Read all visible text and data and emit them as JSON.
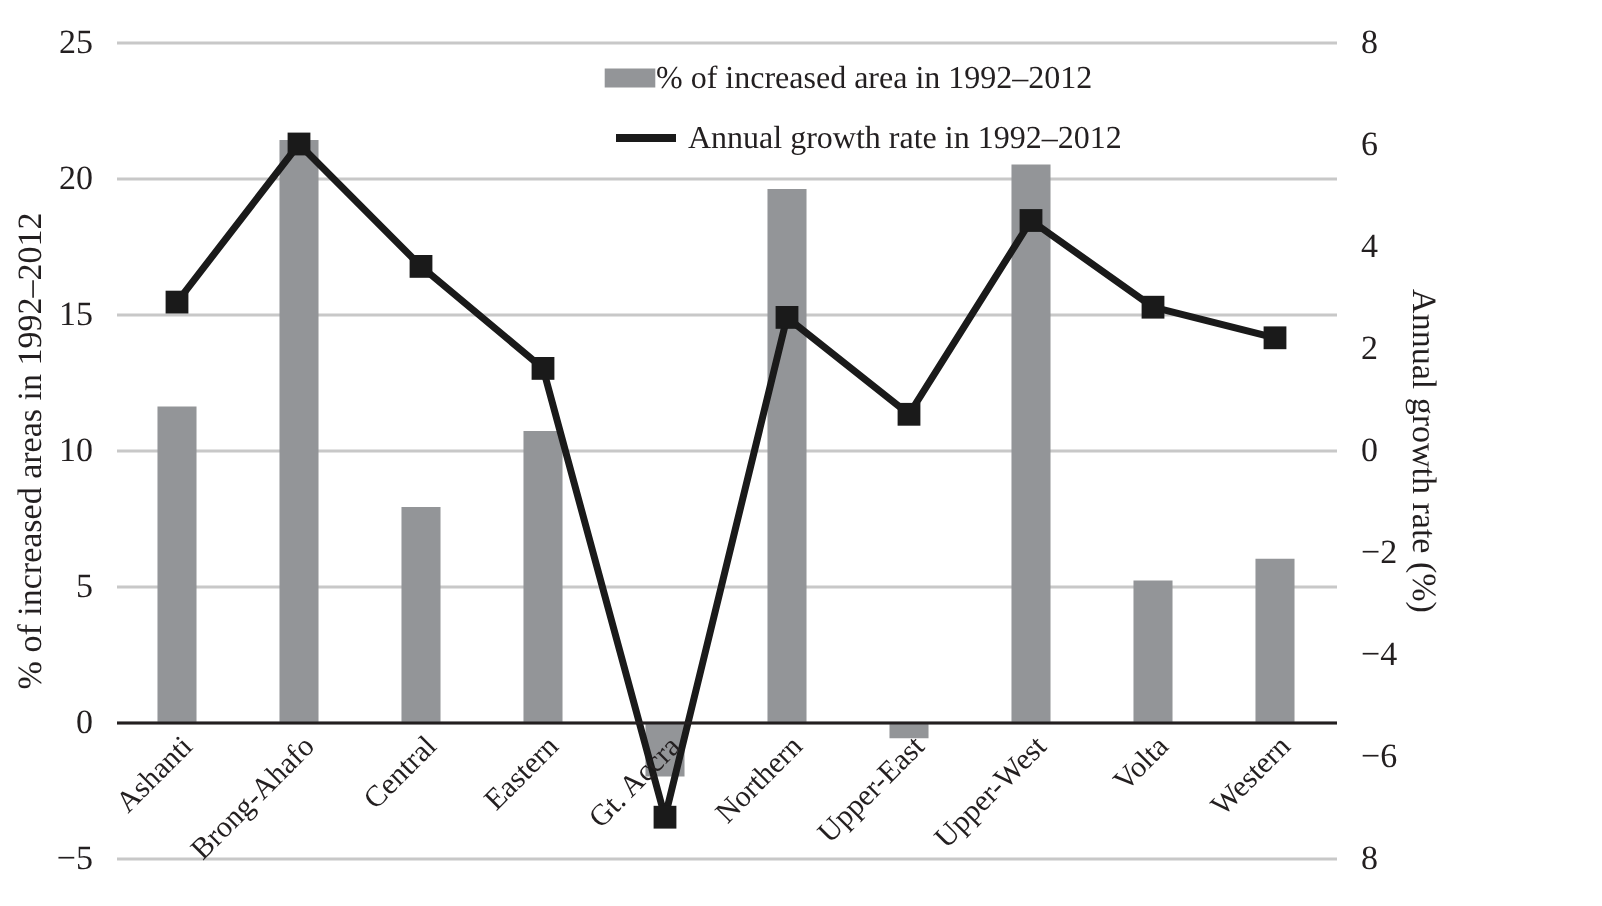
{
  "chart_data": {
    "type": "bar",
    "categories": [
      "Ashanti",
      "Brong-Ahafo",
      "Central",
      "Eastern",
      "Gt. Accra",
      "Northern",
      "Upper-East",
      "Upper-West",
      "Volta",
      "Western"
    ],
    "series": [
      {
        "name": "% of increased area in 1992–2012",
        "color": "#939598",
        "values": [
          11.6,
          21.4,
          7.9,
          10.7,
          -2.0,
          19.6,
          -0.6,
          20.5,
          5.2,
          6.0
        ]
      },
      {
        "name": "Annual growth rate in 1992–2012",
        "type": "line",
        "axis": "y2",
        "color": "#1a1a1a",
        "marker": "square",
        "line_style": "solid",
        "values": [
          2.9,
          6.0,
          3.6,
          1.6,
          -7.2,
          2.6,
          0.7,
          4.5,
          2.8,
          2.2
        ]
      }
    ],
    "ylabel": "% of increased areas in 1992–2012",
    "y2label": "Annual growth rate (%)",
    "ylim": [
      -5,
      25
    ],
    "yticks": [
      -5,
      0,
      5,
      10,
      15,
      20,
      25
    ],
    "y2lim": [
      -8,
      8
    ],
    "y2ticks": [
      {
        "value": -8,
        "label": "8"
      },
      -6,
      -4,
      -2,
      0,
      2,
      4,
      6,
      8
    ],
    "grid": "y",
    "legend": "top"
  }
}
